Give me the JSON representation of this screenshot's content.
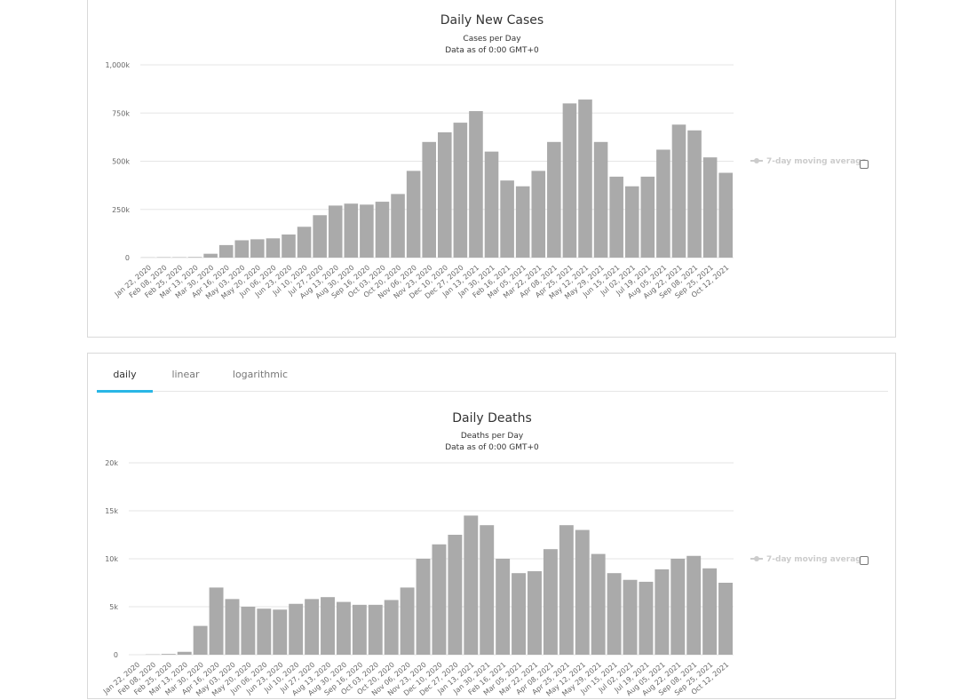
{
  "colors": {
    "bar": "#aaaaaa",
    "grid": "#e6e6e6",
    "axis_text": "#666666",
    "legend": "#cccccc",
    "tab_accent": "#29b6e6"
  },
  "tabs": [
    {
      "label": "daily",
      "active": true
    },
    {
      "label": "linear",
      "active": false
    },
    {
      "label": "logarithmic",
      "active": false
    }
  ],
  "legend_label": "7-day moving average",
  "chart_data": [
    {
      "type": "bar",
      "title": "Daily New Cases",
      "subtitle": "Cases per Day",
      "subtitle2": "Data as of 0:00 GMT+0",
      "ylim": [
        0,
        1000000
      ],
      "y_ticks": [
        "0",
        "250k",
        "500k",
        "750k",
        "1,000k"
      ],
      "x_tick_labels": [
        "Jan 22, 2020",
        "Feb 08, 2020",
        "Feb 25, 2020",
        "Mar 13, 2020",
        "Mar 30, 2020",
        "Apr 16, 2020",
        "May 03, 2020",
        "May 20, 2020",
        "Jun 06, 2020",
        "Jun 23, 2020",
        "Jul 10, 2020",
        "Jul 27, 2020",
        "Aug 13, 2020",
        "Aug 30, 2020",
        "Sep 16, 2020",
        "Oct 03, 2020",
        "Oct 20, 2020",
        "Nov 06, 2020",
        "Nov 23, 2020",
        "Dec 10, 2020",
        "Dec 27, 2020",
        "Jan 13, 2021",
        "Jan 30, 2021",
        "Feb 16, 2021",
        "Mar 05, 2021",
        "Mar 22, 2021",
        "Apr 08, 2021",
        "Apr 25, 2021",
        "May 12, 2021",
        "May 29, 2021",
        "Jun 15, 2021",
        "Jul 02, 2021",
        "Jul 19, 2021",
        "Aug 05, 2021",
        "Aug 22, 2021",
        "Sep 08, 2021",
        "Sep 25, 2021",
        "Oct 12, 2021"
      ],
      "series": [
        {
          "values": [
            1000,
            2000,
            2000,
            3000,
            20000,
            65000,
            90000,
            95000,
            100000,
            120000,
            160000,
            220000,
            270000,
            280000,
            275000,
            290000,
            330000,
            450000,
            600000,
            650000,
            700000,
            760000,
            550000,
            400000,
            370000,
            450000,
            600000,
            800000,
            820000,
            600000,
            420000,
            370000,
            420000,
            560000,
            690000,
            660000,
            520000,
            440000
          ]
        }
      ]
    },
    {
      "type": "bar",
      "title": "Daily Deaths",
      "subtitle": "Deaths per Day",
      "subtitle2": "Data as of 0:00 GMT+0",
      "ylim": [
        0,
        20000
      ],
      "y_ticks": [
        "0",
        "5k",
        "10k",
        "15k",
        "20k"
      ],
      "x_tick_labels": [
        "Jan 22, 2020",
        "Feb 08, 2020",
        "Feb 25, 2020",
        "Mar 13, 2020",
        "Mar 30, 2020",
        "Apr 16, 2020",
        "May 03, 2020",
        "May 20, 2020",
        "Jun 06, 2020",
        "Jun 23, 2020",
        "Jul 10, 2020",
        "Jul 27, 2020",
        "Aug 13, 2020",
        "Aug 30, 2020",
        "Sep 16, 2020",
        "Oct 03, 2020",
        "Oct 20, 2020",
        "Nov 06, 2020",
        "Nov 23, 2020",
        "Dec 10, 2020",
        "Dec 27, 2020",
        "Jan 13, 2021",
        "Jan 30, 2021",
        "Feb 16, 2021",
        "Mar 05, 2021",
        "Mar 22, 2021",
        "Apr 08, 2021",
        "Apr 25, 2021",
        "May 12, 2021",
        "May 29, 2021",
        "Jun 15, 2021",
        "Jul 02, 2021",
        "Jul 19, 2021",
        "Aug 05, 2021",
        "Aug 22, 2021",
        "Sep 08, 2021",
        "Sep 25, 2021",
        "Oct 12, 2021"
      ],
      "series": [
        {
          "values": [
            0,
            30,
            80,
            300,
            3000,
            7000,
            5800,
            5000,
            4800,
            4700,
            5300,
            5800,
            6000,
            5500,
            5200,
            5200,
            5700,
            7000,
            10000,
            11500,
            12500,
            14500,
            13500,
            10000,
            8500,
            8700,
            11000,
            13500,
            13000,
            10500,
            8500,
            7800,
            7600,
            8900,
            10000,
            10300,
            9000,
            7500
          ]
        }
      ]
    }
  ]
}
